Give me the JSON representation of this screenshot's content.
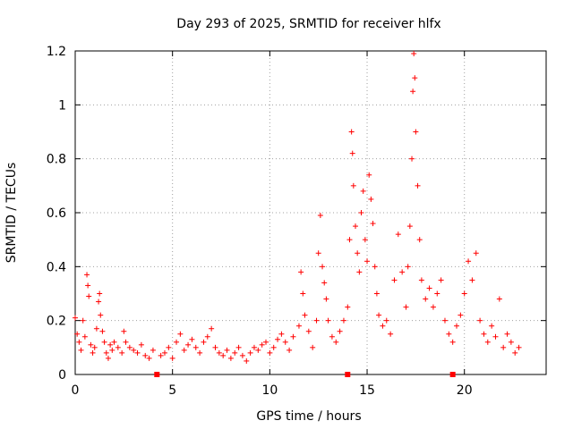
{
  "chart_data": {
    "type": "scatter",
    "title": "Day 293 of 2025, SRMTID for receiver hlfx",
    "xlabel": "GPS time / hours",
    "ylabel": "SRMTID / TECUs",
    "xlim": [
      0,
      24.2
    ],
    "ylim": [
      0,
      1.2
    ],
    "xticks": [
      "0",
      "5",
      "10",
      "15",
      "20"
    ],
    "yticks": [
      "0",
      "0.2",
      "0.4",
      "0.6",
      "0.8",
      "1",
      "1.2"
    ],
    "grid": true,
    "marker": "+",
    "color": "#ff0000",
    "zero_markers_x": [
      4.2,
      14.0,
      19.4
    ],
    "series": [
      {
        "name": "SRMTID",
        "points": [
          [
            0.0,
            0.21
          ],
          [
            0.1,
            0.15
          ],
          [
            0.2,
            0.12
          ],
          [
            0.3,
            0.09
          ],
          [
            0.4,
            0.2
          ],
          [
            0.5,
            0.14
          ],
          [
            0.6,
            0.37
          ],
          [
            0.65,
            0.33
          ],
          [
            0.7,
            0.29
          ],
          [
            0.8,
            0.11
          ],
          [
            0.9,
            0.08
          ],
          [
            1.0,
            0.1
          ],
          [
            1.1,
            0.17
          ],
          [
            1.2,
            0.27
          ],
          [
            1.25,
            0.3
          ],
          [
            1.3,
            0.22
          ],
          [
            1.4,
            0.16
          ],
          [
            1.5,
            0.12
          ],
          [
            1.6,
            0.08
          ],
          [
            1.7,
            0.06
          ],
          [
            1.8,
            0.11
          ],
          [
            1.9,
            0.09
          ],
          [
            2.0,
            0.12
          ],
          [
            2.2,
            0.1
          ],
          [
            2.4,
            0.08
          ],
          [
            2.5,
            0.16
          ],
          [
            2.6,
            0.12
          ],
          [
            2.8,
            0.1
          ],
          [
            3.0,
            0.09
          ],
          [
            3.2,
            0.08
          ],
          [
            3.4,
            0.11
          ],
          [
            3.6,
            0.07
          ],
          [
            3.8,
            0.06
          ],
          [
            4.0,
            0.09
          ],
          [
            4.4,
            0.07
          ],
          [
            4.6,
            0.08
          ],
          [
            4.8,
            0.1
          ],
          [
            5.0,
            0.06
          ],
          [
            5.2,
            0.12
          ],
          [
            5.4,
            0.15
          ],
          [
            5.6,
            0.09
          ],
          [
            5.8,
            0.11
          ],
          [
            6.0,
            0.13
          ],
          [
            6.2,
            0.1
          ],
          [
            6.4,
            0.08
          ],
          [
            6.6,
            0.12
          ],
          [
            6.8,
            0.14
          ],
          [
            7.0,
            0.17
          ],
          [
            7.2,
            0.1
          ],
          [
            7.4,
            0.08
          ],
          [
            7.6,
            0.07
          ],
          [
            7.8,
            0.09
          ],
          [
            8.0,
            0.06
          ],
          [
            8.2,
            0.08
          ],
          [
            8.4,
            0.1
          ],
          [
            8.6,
            0.07
          ],
          [
            8.8,
            0.05
          ],
          [
            9.0,
            0.08
          ],
          [
            9.2,
            0.1
          ],
          [
            9.4,
            0.09
          ],
          [
            9.6,
            0.11
          ],
          [
            9.8,
            0.12
          ],
          [
            10.0,
            0.08
          ],
          [
            10.2,
            0.1
          ],
          [
            10.4,
            0.13
          ],
          [
            10.6,
            0.15
          ],
          [
            10.8,
            0.12
          ],
          [
            11.0,
            0.09
          ],
          [
            11.2,
            0.14
          ],
          [
            11.5,
            0.18
          ],
          [
            11.6,
            0.38
          ],
          [
            11.7,
            0.3
          ],
          [
            11.8,
            0.22
          ],
          [
            12.0,
            0.16
          ],
          [
            12.2,
            0.1
          ],
          [
            12.4,
            0.2
          ],
          [
            12.5,
            0.45
          ],
          [
            12.6,
            0.59
          ],
          [
            12.7,
            0.4
          ],
          [
            12.8,
            0.34
          ],
          [
            12.9,
            0.28
          ],
          [
            13.0,
            0.2
          ],
          [
            13.2,
            0.14
          ],
          [
            13.4,
            0.12
          ],
          [
            13.6,
            0.16
          ],
          [
            13.8,
            0.2
          ],
          [
            14.0,
            0.25
          ],
          [
            14.1,
            0.5
          ],
          [
            14.2,
            0.9
          ],
          [
            14.25,
            0.82
          ],
          [
            14.3,
            0.7
          ],
          [
            14.4,
            0.55
          ],
          [
            14.5,
            0.45
          ],
          [
            14.6,
            0.38
          ],
          [
            14.7,
            0.6
          ],
          [
            14.8,
            0.68
          ],
          [
            14.9,
            0.5
          ],
          [
            15.0,
            0.42
          ],
          [
            15.1,
            0.74
          ],
          [
            15.2,
            0.65
          ],
          [
            15.3,
            0.56
          ],
          [
            15.4,
            0.4
          ],
          [
            15.5,
            0.3
          ],
          [
            15.6,
            0.22
          ],
          [
            15.8,
            0.18
          ],
          [
            16.0,
            0.2
          ],
          [
            16.2,
            0.15
          ],
          [
            16.4,
            0.35
          ],
          [
            16.6,
            0.52
          ],
          [
            16.8,
            0.38
          ],
          [
            17.0,
            0.25
          ],
          [
            17.1,
            0.4
          ],
          [
            17.2,
            0.55
          ],
          [
            17.3,
            0.8
          ],
          [
            17.35,
            1.05
          ],
          [
            17.4,
            1.19
          ],
          [
            17.45,
            1.1
          ],
          [
            17.5,
            0.9
          ],
          [
            17.6,
            0.7
          ],
          [
            17.7,
            0.5
          ],
          [
            17.8,
            0.35
          ],
          [
            18.0,
            0.28
          ],
          [
            18.2,
            0.32
          ],
          [
            18.4,
            0.25
          ],
          [
            18.6,
            0.3
          ],
          [
            18.8,
            0.35
          ],
          [
            19.0,
            0.2
          ],
          [
            19.2,
            0.15
          ],
          [
            19.4,
            0.12
          ],
          [
            19.6,
            0.18
          ],
          [
            19.8,
            0.22
          ],
          [
            20.0,
            0.3
          ],
          [
            20.2,
            0.42
          ],
          [
            20.4,
            0.35
          ],
          [
            20.6,
            0.45
          ],
          [
            20.8,
            0.2
          ],
          [
            21.0,
            0.15
          ],
          [
            21.2,
            0.12
          ],
          [
            21.4,
            0.18
          ],
          [
            21.6,
            0.14
          ],
          [
            21.8,
            0.28
          ],
          [
            22.0,
            0.1
          ],
          [
            22.2,
            0.15
          ],
          [
            22.4,
            0.12
          ],
          [
            22.6,
            0.08
          ],
          [
            22.8,
            0.1
          ]
        ]
      }
    ]
  }
}
